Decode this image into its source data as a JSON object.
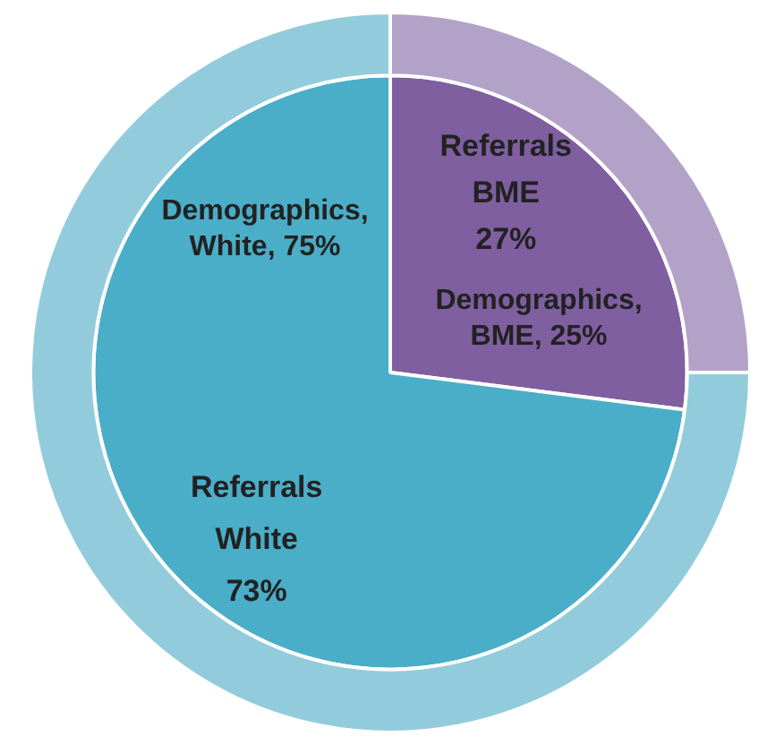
{
  "chart_data": {
    "type": "pie",
    "categories": [
      "BME",
      "White"
    ],
    "series": [
      {
        "name": "Referrals",
        "colors": [
          "#7f5fa0",
          "#4aaec8"
        ],
        "values": [
          27,
          73
        ],
        "value_labels": [
          "27%",
          "73%"
        ]
      },
      {
        "colors": [
          "#b3a2c8",
          "#92ccdc"
        ],
        "values": [
          25,
          75
        ],
        "value_labels": [
          "Demographics, BME, 25%",
          "Demographics, White, 75%"
        ]
      }
    ],
    "legend": false
  }
}
